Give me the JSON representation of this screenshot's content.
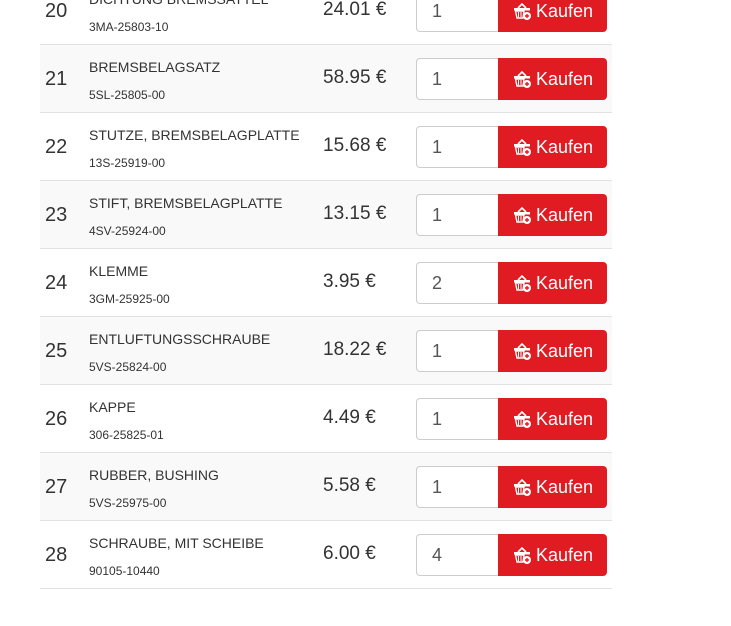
{
  "currency": "€",
  "buy_label": "Kaufen",
  "accent_color": "#e01b22",
  "rows": [
    {
      "num": "20",
      "name": "DICHTUNG BREMSSATTEL",
      "part": "3MA-25803-10",
      "price": "24.01 €",
      "qty": "1"
    },
    {
      "num": "21",
      "name": "BREMSBELAGSATZ",
      "part": "5SL-25805-00",
      "price": "58.95 €",
      "qty": "1"
    },
    {
      "num": "22",
      "name": "STUTZE, BREMSBELAGPLATTE",
      "part": "13S-25919-00",
      "price": "15.68 €",
      "qty": "1"
    },
    {
      "num": "23",
      "name": "STIFT, BREMSBELAGPLATTE",
      "part": "4SV-25924-00",
      "price": "13.15 €",
      "qty": "1"
    },
    {
      "num": "24",
      "name": "KLEMME",
      "part": "3GM-25925-00",
      "price": "3.95 €",
      "qty": "2"
    },
    {
      "num": "25",
      "name": "ENTLUFTUNGSSCHRAUBE",
      "part": "5VS-25824-00",
      "price": "18.22 €",
      "qty": "1"
    },
    {
      "num": "26",
      "name": "KAPPE",
      "part": "306-25825-01",
      "price": "4.49 €",
      "qty": "1"
    },
    {
      "num": "27",
      "name": "RUBBER, BUSHING",
      "part": "5VS-25975-00",
      "price": "5.58 €",
      "qty": "1"
    },
    {
      "num": "28",
      "name": "SCHRAUBE, MIT SCHEIBE",
      "part": "90105-10440",
      "price": "6.00 €",
      "qty": "4"
    }
  ]
}
